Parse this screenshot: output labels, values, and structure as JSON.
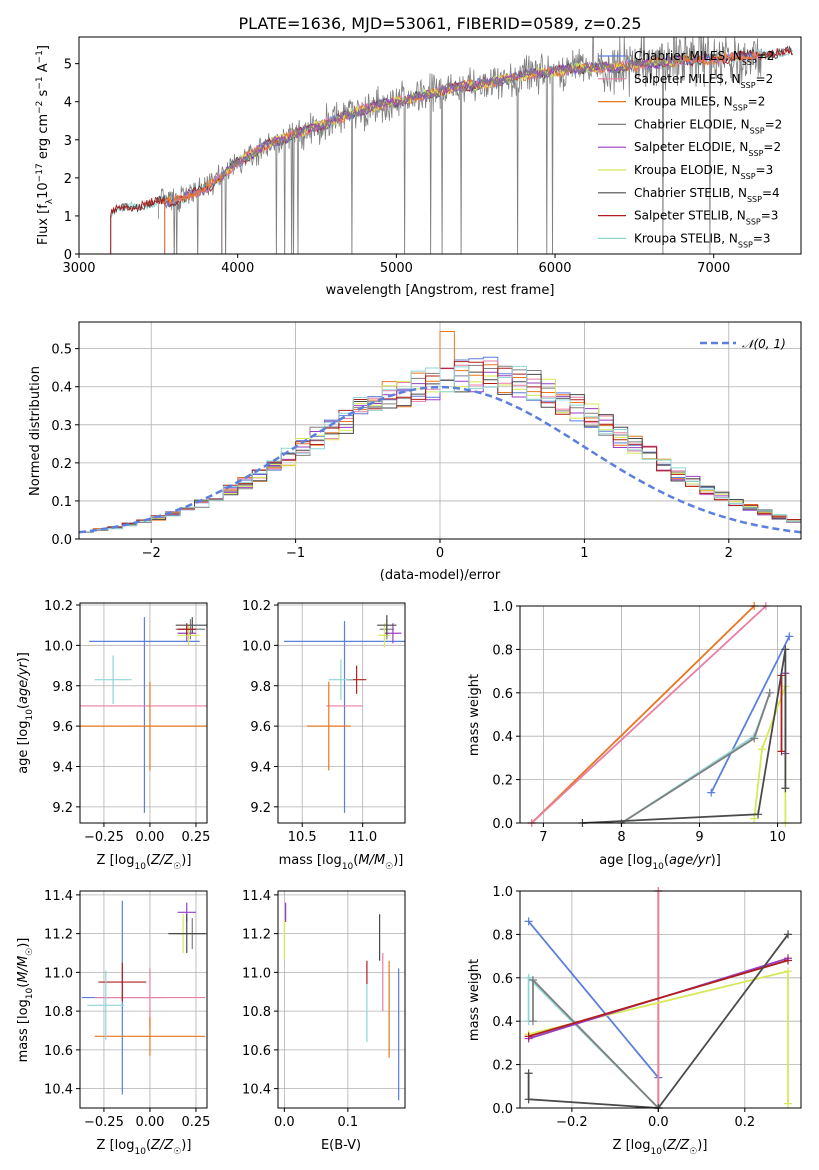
{
  "figure_title": "PLATE=1636, MJD=53061, FIBERID=0589, z=0.25",
  "colors": {
    "Chabrier MILES": "#5b7fdc",
    "Salpeter MILES": "#e87fa5",
    "Kroupa MILES": "#e8761f",
    "Chabrier ELODIE": "#808080",
    "Salpeter ELODIE": "#9a3fc4",
    "Kroupa ELODIE": "#d7e85a",
    "Chabrier STELIB": "#4a4a4a",
    "Salpeter STELIB": "#b01e1e",
    "Kroupa STELIB": "#8fd5d5"
  },
  "chart_data": [
    {
      "id": "spectrum",
      "type": "line",
      "title": "PLATE=1636, MJD=53061, FIBERID=0589, z=0.25",
      "xlabel": "wavelength [Angstrom, rest frame]",
      "ylabel": "Flux [f",
      "ylabel_full": "Flux [fλ10⁻¹⁷ erg cm⁻² s⁻¹ A⁻¹]",
      "xlim": [
        3000,
        7550
      ],
      "ylim": [
        0,
        5.7
      ],
      "xticks": [
        3000,
        4000,
        5000,
        6000,
        7000
      ],
      "yticks": [
        0,
        1,
        2,
        3,
        4,
        5
      ],
      "grid": false,
      "legend_position": "top-right",
      "observed_range": [
        3500,
        7300
      ],
      "model_anchor_wavelength": [
        3200,
        3400,
        3600,
        3800,
        4000,
        4200,
        4400,
        4600,
        4800,
        5000,
        5200,
        5400,
        5600,
        5800,
        6000,
        6200,
        6400,
        6600,
        6800,
        7000,
        7200,
        7500
      ],
      "model_anchor_flux": [
        1.1,
        1.3,
        1.4,
        1.7,
        2.4,
        2.9,
        3.2,
        3.5,
        3.8,
        4.0,
        4.2,
        4.4,
        4.5,
        4.7,
        4.8,
        4.9,
        4.9,
        5.0,
        5.1,
        5.1,
        5.2,
        5.3
      ],
      "series": [
        {
          "name": "Chabrier MILES, N",
          "label_suffix": "SSP",
          "nssp": "=2"
        },
        {
          "name": "Salpeter MILES, N",
          "label_suffix": "SSP",
          "nssp": "=2"
        },
        {
          "name": "Kroupa MILES, N",
          "label_suffix": "SSP",
          "nssp": "=2"
        },
        {
          "name": "Chabrier ELODIE, N",
          "label_suffix": "SSP",
          "nssp": "=2"
        },
        {
          "name": "Salpeter ELODIE, N",
          "label_suffix": "SSP",
          "nssp": "=2"
        },
        {
          "name": "Kroupa ELODIE, N",
          "label_suffix": "SSP",
          "nssp": "=3"
        },
        {
          "name": "Chabrier STELIB, N",
          "label_suffix": "SSP",
          "nssp": "=4"
        },
        {
          "name": "Salpeter STELIB, N",
          "label_suffix": "SSP",
          "nssp": "=3"
        },
        {
          "name": "Kroupa STELIB, N",
          "label_suffix": "SSP",
          "nssp": "=3"
        }
      ]
    },
    {
      "id": "residuals",
      "type": "line",
      "xlabel": "(data-model)/error",
      "ylabel": "Normed distribution",
      "xlim": [
        -2.5,
        2.5
      ],
      "ylim": [
        0,
        0.57
      ],
      "xticks": [
        -2,
        -1,
        0,
        1,
        2
      ],
      "xtick_labels": [
        "−2",
        "−1",
        "0",
        "1",
        "2"
      ],
      "yticks": [
        0.0,
        0.1,
        0.2,
        0.3,
        0.4,
        0.5
      ],
      "ytick_labels": [
        "0.0",
        "0.1",
        "0.2",
        "0.3",
        "0.4",
        "0.5"
      ],
      "grid": true,
      "legend_position": "top-right",
      "legend_label": "𝒩(0, 1)",
      "bin_edges_start": -2.5,
      "bin_width": 0.1,
      "hist_base": [
        0.02,
        0.025,
        0.03,
        0.038,
        0.045,
        0.055,
        0.065,
        0.078,
        0.092,
        0.11,
        0.128,
        0.148,
        0.17,
        0.19,
        0.215,
        0.24,
        0.265,
        0.29,
        0.31,
        0.335,
        0.355,
        0.375,
        0.39,
        0.4,
        0.41,
        0.42,
        0.425,
        0.43,
        0.43,
        0.425,
        0.415,
        0.4,
        0.385,
        0.365,
        0.345,
        0.32,
        0.295,
        0.27,
        0.245,
        0.22,
        0.195,
        0.17,
        0.15,
        0.13,
        0.112,
        0.096,
        0.082,
        0.07,
        0.058,
        0.047
      ],
      "normal_mean": 0,
      "normal_sigma": 1
    },
    {
      "id": "age_vs_Z",
      "type": "scatter",
      "xlabel": "Z [log",
      "xlabel_full": "Z [log₁₀(Z/Z☉)]",
      "ylabel": "age  [log",
      "ylabel_full": "age  [log₁₀(age/yr)]",
      "xlim": [
        -0.38,
        0.31
      ],
      "ylim": [
        9.12,
        10.21
      ],
      "xticks": [
        -0.25,
        0.0,
        0.25
      ],
      "xtick_labels": [
        "−0.25",
        "0.00",
        "0.25"
      ],
      "yticks": [
        9.2,
        9.4,
        9.6,
        9.8,
        10.0,
        10.2
      ],
      "ytick_labels": [
        "9.2",
        "9.4",
        "9.6",
        "9.8",
        "10.0",
        "10.2"
      ],
      "grid": true,
      "points": [
        {
          "s": "Chabrier MILES",
          "x": -0.03,
          "y": 10.02,
          "xerr": 0.3,
          "yerr": 0.12,
          "ylo": 0.85
        },
        {
          "s": "Salpeter MILES",
          "x": 0.0,
          "y": 9.7,
          "xerr": 0.38,
          "yerr": 0.0
        },
        {
          "s": "Kroupa MILES",
          "x": 0.0,
          "y": 9.6,
          "xerr": 0.38,
          "yerr": 0.22
        },
        {
          "s": "Chabrier ELODIE",
          "x": 0.22,
          "y": 10.08,
          "xerr": 0.08,
          "yerr": 0.05
        },
        {
          "s": "Salpeter ELODIE",
          "x": 0.2,
          "y": 10.06,
          "xerr": 0.05,
          "yerr": 0.04
        },
        {
          "s": "Kroupa ELODIE",
          "x": 0.21,
          "y": 10.05,
          "xerr": 0.06,
          "yerr": 0.05
        },
        {
          "s": "Chabrier STELIB",
          "x": 0.23,
          "y": 10.1,
          "xerr": 0.09,
          "yerr": 0.04
        },
        {
          "s": "Salpeter STELIB",
          "x": 0.2,
          "y": 10.08,
          "xerr": 0.05,
          "yerr": 0.03
        },
        {
          "s": "Kroupa STELIB",
          "x": -0.2,
          "y": 9.83,
          "xerr": 0.1,
          "yerr": 0.12
        }
      ]
    },
    {
      "id": "age_vs_mass",
      "type": "scatter",
      "xlabel": "mass [log",
      "xlabel_full": "mass [log₁₀(M/M☉)]",
      "xlim": [
        10.3,
        11.35
      ],
      "ylim": [
        9.12,
        10.21
      ],
      "xticks": [
        10.5,
        11.0
      ],
      "xtick_labels": [
        "10.5",
        "11.0"
      ],
      "yticks": [
        9.2,
        9.4,
        9.6,
        9.8,
        10.0,
        10.2
      ],
      "ytick_labels": [
        "9.2",
        "9.4",
        "9.6",
        "9.8",
        "10.0",
        "10.2"
      ],
      "grid": true,
      "points": [
        {
          "s": "Chabrier MILES",
          "x": 10.85,
          "y": 10.02,
          "xerr": 0.5,
          "yerr": 0.1,
          "ylo": 0.85
        },
        {
          "s": "Salpeter MILES",
          "x": 10.85,
          "y": 9.7,
          "xerr": 0.15,
          "yerr": 0.0
        },
        {
          "s": "Kroupa MILES",
          "x": 10.72,
          "y": 9.6,
          "xerr": 0.18,
          "yerr": 0.22
        },
        {
          "s": "Chabrier ELODIE",
          "x": 11.2,
          "y": 10.08,
          "xerr": 0.06,
          "yerr": 0.05
        },
        {
          "s": "Salpeter ELODIE",
          "x": 11.25,
          "y": 10.06,
          "xerr": 0.07,
          "yerr": 0.05
        },
        {
          "s": "Kroupa ELODIE",
          "x": 11.18,
          "y": 10.05,
          "xerr": 0.05,
          "yerr": 0.06
        },
        {
          "s": "Chabrier STELIB",
          "x": 11.2,
          "y": 10.1,
          "xerr": 0.08,
          "yerr": 0.05
        },
        {
          "s": "Salpeter STELIB",
          "x": 10.95,
          "y": 9.83,
          "xerr": 0.08,
          "yerr": 0.07
        },
        {
          "s": "Kroupa STELIB",
          "x": 10.82,
          "y": 9.83,
          "xerr": 0.1,
          "yerr": 0.1
        }
      ]
    },
    {
      "id": "weight_vs_age",
      "type": "line",
      "xlabel": "age  [log",
      "xlabel_full": "age  [log₁₀(age/yr)]",
      "ylabel": "mass weight",
      "xlim": [
        6.7,
        10.3
      ],
      "ylim": [
        0,
        1.0
      ],
      "xticks": [
        7,
        8,
        9,
        10
      ],
      "yticks": [
        0.0,
        0.2,
        0.4,
        0.6,
        0.8,
        1.0
      ],
      "ytick_labels": [
        "0.0",
        "0.2",
        "0.4",
        "0.6",
        "0.8",
        "1.0"
      ],
      "grid": true,
      "series": [
        {
          "s": "Kroupa MILES",
          "x": [
            6.85,
            9.7
          ],
          "y": [
            0.0,
            1.0
          ]
        },
        {
          "s": "Salpeter MILES",
          "x": [
            6.85,
            9.85
          ],
          "y": [
            0.0,
            1.0
          ]
        },
        {
          "s": "Chabrier MILES",
          "x": [
            9.15,
            10.15
          ],
          "y": [
            0.14,
            0.86
          ]
        },
        {
          "s": "Kroupa STELIB",
          "x": [
            8.0,
            9.7,
            9.9
          ],
          "y": [
            0.0,
            0.4,
            0.6
          ]
        },
        {
          "s": "Chabrier ELODIE",
          "x": [
            8.0,
            9.7,
            9.9
          ],
          "y": [
            0.0,
            0.39,
            0.6
          ]
        },
        {
          "s": "Kroupa ELODIE",
          "x": [
            9.7,
            9.8,
            10.1,
            10.1
          ],
          "y": [
            0.02,
            0.34,
            0.63,
            0.0
          ]
        },
        {
          "s": "Salpeter ELODIE",
          "x": [
            10.1,
            10.1
          ],
          "y": [
            0.32,
            0.69
          ]
        },
        {
          "s": "Salpeter STELIB",
          "x": [
            10.05,
            10.05
          ],
          "y": [
            0.33,
            0.68
          ]
        },
        {
          "s": "Chabrier STELIB",
          "x": [
            7.5,
            9.75,
            10.1,
            10.1
          ],
          "y": [
            0.0,
            0.04,
            0.8,
            0.16
          ]
        }
      ]
    },
    {
      "id": "mass_vs_Z",
      "type": "scatter",
      "xlabel": "Z [log",
      "xlabel_full": "Z [log₁₀(Z/Z☉)]",
      "ylabel": "mass [log",
      "ylabel_full": "mass [log₁₀(M/M☉)]",
      "xlim": [
        -0.38,
        0.31
      ],
      "ylim": [
        10.3,
        11.42
      ],
      "xticks": [
        -0.25,
        0.0,
        0.25
      ],
      "xtick_labels": [
        "−0.25",
        "0.00",
        "0.25"
      ],
      "yticks": [
        10.4,
        10.6,
        10.8,
        11.0,
        11.2,
        11.4
      ],
      "ytick_labels": [
        "10.4",
        "10.6",
        "10.8",
        "11.0",
        "11.2",
        "11.4"
      ],
      "grid": true,
      "points": [
        {
          "s": "Chabrier MILES",
          "x": -0.15,
          "y": 10.87,
          "xerr": 0.22,
          "yerr": 0.5
        },
        {
          "s": "Salpeter MILES",
          "x": 0.0,
          "y": 10.87,
          "xerr": 0.3,
          "yerr": 0.15
        },
        {
          "s": "Kroupa MILES",
          "x": 0.0,
          "y": 10.67,
          "xerr": 0.3,
          "yerr": 0.1
        },
        {
          "s": "Chabrier ELODIE",
          "x": 0.23,
          "y": 11.2,
          "xerr": 0.08,
          "yerr": 0.08
        },
        {
          "s": "Salpeter ELODIE",
          "x": 0.2,
          "y": 11.31,
          "xerr": 0.05,
          "yerr": 0.05
        },
        {
          "s": "Kroupa ELODIE",
          "x": 0.18,
          "y": 11.2,
          "xerr": 0.06,
          "yerr": 0.1
        },
        {
          "s": "Chabrier STELIB",
          "x": 0.2,
          "y": 11.2,
          "xerr": 0.1,
          "yerr": 0.1
        },
        {
          "s": "Salpeter STELIB",
          "x": -0.15,
          "y": 10.95,
          "xerr": 0.13,
          "yerr": 0.1
        },
        {
          "s": "Kroupa STELIB",
          "x": -0.24,
          "y": 10.83,
          "xerr": 0.1,
          "yerr": 0.18
        }
      ]
    },
    {
      "id": "mass_vs_EBV",
      "type": "scatter",
      "xlabel": "E(B-V)",
      "xlim": [
        -0.01,
        0.19
      ],
      "ylim": [
        10.3,
        11.42
      ],
      "xticks": [
        0.0,
        0.1
      ],
      "xtick_labels": [
        "0.0",
        "0.1"
      ],
      "yticks": [
        10.4,
        10.6,
        10.8,
        11.0,
        11.2,
        11.4
      ],
      "ytick_labels": [
        "10.4",
        "10.6",
        "10.8",
        "11.0",
        "11.2",
        "11.4"
      ],
      "grid": true,
      "points": [
        {
          "s": "Chabrier MILES",
          "x": 0.18,
          "y": 10.68,
          "xerr": 0,
          "yerr": 0.34
        },
        {
          "s": "Kroupa MILES",
          "x": 0.165,
          "y": 10.81,
          "xerr": 0,
          "yerr": 0.25
        },
        {
          "s": "Salpeter MILES",
          "x": 0.155,
          "y": 10.95,
          "xerr": 0,
          "yerr": 0.15
        },
        {
          "s": "Chabrier STELIB",
          "x": 0.15,
          "y": 11.18,
          "xerr": 0,
          "yerr": 0.12
        },
        {
          "s": "Salpeter STELIB",
          "x": 0.13,
          "y": 11.0,
          "xerr": 0,
          "yerr": 0.06
        },
        {
          "s": "Kroupa STELIB",
          "x": 0.13,
          "y": 10.79,
          "xerr": 0,
          "yerr": 0.15
        },
        {
          "s": "Salpeter ELODIE",
          "x": 0.002,
          "y": 11.31,
          "xerr": 0,
          "yerr": 0.05
        },
        {
          "s": "Kroupa ELODIE",
          "x": 0.0,
          "y": 11.17,
          "xerr": 0,
          "yerr": 0.1
        }
      ]
    },
    {
      "id": "weight_vs_Z",
      "type": "line",
      "xlabel": "Z [log",
      "xlabel_full": "Z [log₁₀(Z/Z☉)]",
      "ylabel": "mass weight",
      "xlim": [
        -0.32,
        0.33
      ],
      "ylim": [
        0,
        1.0
      ],
      "xticks": [
        -0.2,
        0.0,
        0.2
      ],
      "xtick_labels": [
        "−0.2",
        "0.0",
        "0.2"
      ],
      "yticks": [
        0.0,
        0.2,
        0.4,
        0.6,
        0.8,
        1.0
      ],
      "ytick_labels": [
        "0.0",
        "0.2",
        "0.4",
        "0.6",
        "0.8",
        "1.0"
      ],
      "grid": true,
      "series": [
        {
          "s": "Chabrier MILES",
          "x": [
            -0.3,
            0.0
          ],
          "y": [
            0.86,
            0.14
          ]
        },
        {
          "s": "Kroupa MILES",
          "x": [
            0.0,
            0.0
          ],
          "y": [
            0.0,
            1.0
          ]
        },
        {
          "s": "Salpeter MILES",
          "x": [
            0.0,
            0.0
          ],
          "y": [
            0.0,
            1.0
          ]
        },
        {
          "s": "Kroupa STELIB",
          "x": [
            -0.3,
            -0.3,
            0.0
          ],
          "y": [
            0.4,
            0.6,
            0.0
          ]
        },
        {
          "s": "Chabrier ELODIE",
          "x": [
            -0.29,
            -0.29,
            0.0
          ],
          "y": [
            0.4,
            0.59,
            0.0
          ]
        },
        {
          "s": "Kroupa ELODIE",
          "x": [
            -0.3,
            0.3,
            0.3
          ],
          "y": [
            0.34,
            0.63,
            0.02
          ]
        },
        {
          "s": "Salpeter ELODIE",
          "x": [
            -0.3,
            0.3
          ],
          "y": [
            0.32,
            0.69
          ]
        },
        {
          "s": "Salpeter STELIB",
          "x": [
            -0.3,
            0.3
          ],
          "y": [
            0.33,
            0.68
          ]
        },
        {
          "s": "Chabrier STELIB",
          "x": [
            -0.3,
            -0.3,
            0.0,
            0.3
          ],
          "y": [
            0.16,
            0.04,
            0.0,
            0.8
          ]
        }
      ]
    }
  ]
}
